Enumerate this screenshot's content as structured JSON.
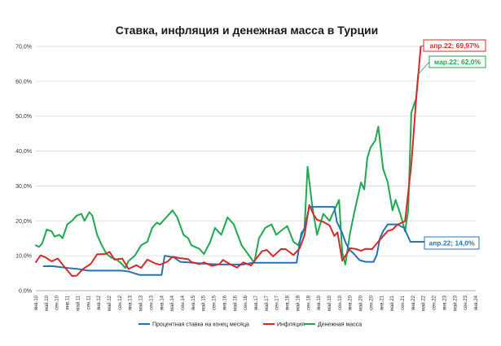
{
  "chart_data": {
    "type": "line",
    "title": "Ставка, инфляция и денежная масса в Турции",
    "y_ticks": [
      "0,0%",
      "10,0%",
      "20,0%",
      "30,0%",
      "40,0%",
      "50,0%",
      "60,0%",
      "70,0%"
    ],
    "ylim": [
      0,
      70
    ],
    "grid": true,
    "legend_position": "bottom",
    "x_tick_labels": [
      "янв.10",
      "май.10",
      "сен.10",
      "янв.11",
      "май.11",
      "сен.11",
      "янв.12",
      "май.12",
      "сен.12",
      "янв.13",
      "май.13",
      "сен.13",
      "янв.14",
      "май.14",
      "сен.14",
      "янв.15",
      "май.15",
      "сен.15",
      "янв.16",
      "май.16",
      "сен.16",
      "янв.17",
      "май.17",
      "сен.17",
      "янв.18",
      "май.18",
      "сен.18",
      "янв.19",
      "май.19",
      "сен.19",
      "янв.20",
      "май.20",
      "сен.20",
      "янв.21",
      "май.21",
      "сен.21",
      "янв.22",
      "май.22",
      "сен.22",
      "янв.23",
      "май.23",
      "сен.23",
      "янв.24"
    ],
    "series": [
      {
        "name": "Процентная ставка на конец месяца",
        "color": "#2474b5",
        "values": [
          [
            2010.25,
            7
          ],
          [
            2010.55,
            7
          ],
          [
            2011.0,
            6.5
          ],
          [
            2011.3,
            6.25
          ],
          [
            2011.65,
            5.75
          ],
          [
            2012.0,
            5.75
          ],
          [
            2012.4,
            5.75
          ],
          [
            2012.7,
            5.75
          ],
          [
            2012.95,
            5.5
          ],
          [
            2013.3,
            4.5
          ],
          [
            2013.7,
            4.5
          ],
          [
            2013.95,
            4.5
          ],
          [
            2014.0,
            4.5
          ],
          [
            2014.1,
            10
          ],
          [
            2014.4,
            9.5
          ],
          [
            2014.6,
            8.25
          ],
          [
            2015.0,
            8
          ],
          [
            2015.3,
            7.75
          ],
          [
            2015.9,
            7.5
          ],
          [
            2016.2,
            7.5
          ],
          [
            2016.6,
            7.5
          ],
          [
            2016.9,
            8.0
          ],
          [
            2017.2,
            8.0
          ],
          [
            2017.6,
            8.0
          ],
          [
            2018.0,
            8.0
          ],
          [
            2018.3,
            8.0
          ],
          [
            2018.45,
            16.5
          ],
          [
            2018.55,
            17.75
          ],
          [
            2018.7,
            24
          ],
          [
            2019.0,
            24
          ],
          [
            2019.5,
            24
          ],
          [
            2019.58,
            19.75
          ],
          [
            2019.75,
            16.5
          ],
          [
            2019.85,
            14
          ],
          [
            2019.95,
            12
          ],
          [
            2020.1,
            10.75
          ],
          [
            2020.3,
            8.75
          ],
          [
            2020.5,
            8.25
          ],
          [
            2020.75,
            8.25
          ],
          [
            2020.85,
            10.25
          ],
          [
            2020.95,
            15
          ],
          [
            2021.05,
            17
          ],
          [
            2021.2,
            19
          ],
          [
            2021.5,
            19
          ],
          [
            2021.72,
            18
          ],
          [
            2021.82,
            16
          ],
          [
            2021.92,
            14
          ],
          [
            2022.0,
            14
          ],
          [
            2022.33,
            14
          ],
          [
            2022.5,
            14
          ]
        ]
      },
      {
        "name": "Инфляция",
        "color": "#d42a2a",
        "values": [
          [
            2010.0,
            8.2
          ],
          [
            2010.15,
            10.1
          ],
          [
            2010.3,
            9.6
          ],
          [
            2010.5,
            8.4
          ],
          [
            2010.7,
            9.2
          ],
          [
            2010.95,
            6.4
          ],
          [
            2011.15,
            4.2
          ],
          [
            2011.3,
            4.3
          ],
          [
            2011.5,
            6.2
          ],
          [
            2011.75,
            7.7
          ],
          [
            2011.95,
            10.4
          ],
          [
            2012.2,
            10.5
          ],
          [
            2012.35,
            11.1
          ],
          [
            2012.5,
            8.9
          ],
          [
            2012.75,
            9.2
          ],
          [
            2012.95,
            6.2
          ],
          [
            2013.2,
            7.3
          ],
          [
            2013.35,
            6.5
          ],
          [
            2013.55,
            8.9
          ],
          [
            2013.8,
            7.8
          ],
          [
            2013.95,
            7.4
          ],
          [
            2014.2,
            8.4
          ],
          [
            2014.35,
            9.7
          ],
          [
            2014.6,
            9.3
          ],
          [
            2014.85,
            9.0
          ],
          [
            2014.95,
            8.2
          ],
          [
            2015.2,
            7.6
          ],
          [
            2015.35,
            8.1
          ],
          [
            2015.6,
            7.1
          ],
          [
            2015.85,
            7.6
          ],
          [
            2015.95,
            8.8
          ],
          [
            2016.2,
            7.5
          ],
          [
            2016.4,
            6.6
          ],
          [
            2016.6,
            8.1
          ],
          [
            2016.85,
            7.2
          ],
          [
            2016.95,
            8.5
          ],
          [
            2017.2,
            11.3
          ],
          [
            2017.35,
            11.7
          ],
          [
            2017.55,
            9.8
          ],
          [
            2017.8,
            11.9
          ],
          [
            2017.95,
            11.9
          ],
          [
            2018.2,
            10.2
          ],
          [
            2018.4,
            12.2
          ],
          [
            2018.55,
            15.9
          ],
          [
            2018.7,
            24.5
          ],
          [
            2018.85,
            21.6
          ],
          [
            2018.95,
            20.3
          ],
          [
            2019.15,
            19.7
          ],
          [
            2019.35,
            18.7
          ],
          [
            2019.5,
            15.7
          ],
          [
            2019.6,
            16.7
          ],
          [
            2019.75,
            8.6
          ],
          [
            2019.9,
            10.6
          ],
          [
            2020.0,
            12.2
          ],
          [
            2020.2,
            11.9
          ],
          [
            2020.35,
            11.4
          ],
          [
            2020.5,
            12.0
          ],
          [
            2020.7,
            11.9
          ],
          [
            2020.95,
            14.6
          ],
          [
            2021.2,
            17.1
          ],
          [
            2021.35,
            17.5
          ],
          [
            2021.5,
            18.9
          ],
          [
            2021.75,
            19.9
          ],
          [
            2021.95,
            36.1
          ],
          [
            2022.1,
            54.4
          ],
          [
            2022.25,
            69.97
          ]
        ]
      },
      {
        "name": "Денежная масса",
        "color": "#1fa84f",
        "values": [
          [
            2010.0,
            13
          ],
          [
            2010.1,
            12.5
          ],
          [
            2010.2,
            13.5
          ],
          [
            2010.35,
            17.5
          ],
          [
            2010.5,
            17
          ],
          [
            2010.6,
            15.5
          ],
          [
            2010.75,
            16
          ],
          [
            2010.85,
            15
          ],
          [
            2011.0,
            19
          ],
          [
            2011.15,
            20
          ],
          [
            2011.3,
            21.5
          ],
          [
            2011.45,
            22
          ],
          [
            2011.55,
            20
          ],
          [
            2011.7,
            22.5
          ],
          [
            2011.8,
            21.5
          ],
          [
            2011.95,
            16
          ],
          [
            2012.1,
            13
          ],
          [
            2012.25,
            10.5
          ],
          [
            2012.4,
            9.5
          ],
          [
            2012.55,
            9
          ],
          [
            2012.7,
            8
          ],
          [
            2012.85,
            6.5
          ],
          [
            2012.95,
            8.5
          ],
          [
            2013.15,
            10
          ],
          [
            2013.35,
            13
          ],
          [
            2013.55,
            14
          ],
          [
            2013.7,
            18
          ],
          [
            2013.85,
            19.5
          ],
          [
            2013.95,
            19
          ],
          [
            2014.15,
            21
          ],
          [
            2014.35,
            23
          ],
          [
            2014.5,
            21
          ],
          [
            2014.7,
            16
          ],
          [
            2014.85,
            15
          ],
          [
            2014.95,
            13
          ],
          [
            2015.2,
            12
          ],
          [
            2015.35,
            10.5
          ],
          [
            2015.55,
            14
          ],
          [
            2015.7,
            18
          ],
          [
            2015.9,
            16
          ],
          [
            2016.1,
            21
          ],
          [
            2016.3,
            19
          ],
          [
            2016.55,
            13
          ],
          [
            2016.75,
            10.5
          ],
          [
            2016.95,
            8
          ],
          [
            2017.1,
            15
          ],
          [
            2017.3,
            18
          ],
          [
            2017.5,
            19
          ],
          [
            2017.65,
            16
          ],
          [
            2017.85,
            17.5
          ],
          [
            2018.0,
            18.5
          ],
          [
            2018.2,
            14
          ],
          [
            2018.35,
            13
          ],
          [
            2018.55,
            18
          ],
          [
            2018.65,
            35.5
          ],
          [
            2018.8,
            24
          ],
          [
            2018.95,
            16
          ],
          [
            2019.15,
            22
          ],
          [
            2019.35,
            20
          ],
          [
            2019.5,
            23
          ],
          [
            2019.65,
            26
          ],
          [
            2019.75,
            11
          ],
          [
            2019.85,
            7.5
          ],
          [
            2020.0,
            16.5
          ],
          [
            2020.15,
            23
          ],
          [
            2020.35,
            31
          ],
          [
            2020.45,
            29
          ],
          [
            2020.55,
            38
          ],
          [
            2020.65,
            41
          ],
          [
            2020.8,
            43
          ],
          [
            2020.9,
            47
          ],
          [
            2021.05,
            35
          ],
          [
            2021.2,
            31
          ],
          [
            2021.35,
            23
          ],
          [
            2021.45,
            26
          ],
          [
            2021.6,
            22
          ],
          [
            2021.75,
            17
          ],
          [
            2021.85,
            23
          ],
          [
            2021.95,
            51
          ],
          [
            2022.1,
            55
          ],
          [
            2022.17,
            62
          ]
        ]
      }
    ],
    "annotations": [
      {
        "text": "апр.22; 69,97%",
        "color": "#d42a2a"
      },
      {
        "text": "мар.22; 62,0%",
        "color": "#1fa84f"
      },
      {
        "text": "апр.22; 14,0%",
        "color": "#2474b5"
      }
    ]
  }
}
